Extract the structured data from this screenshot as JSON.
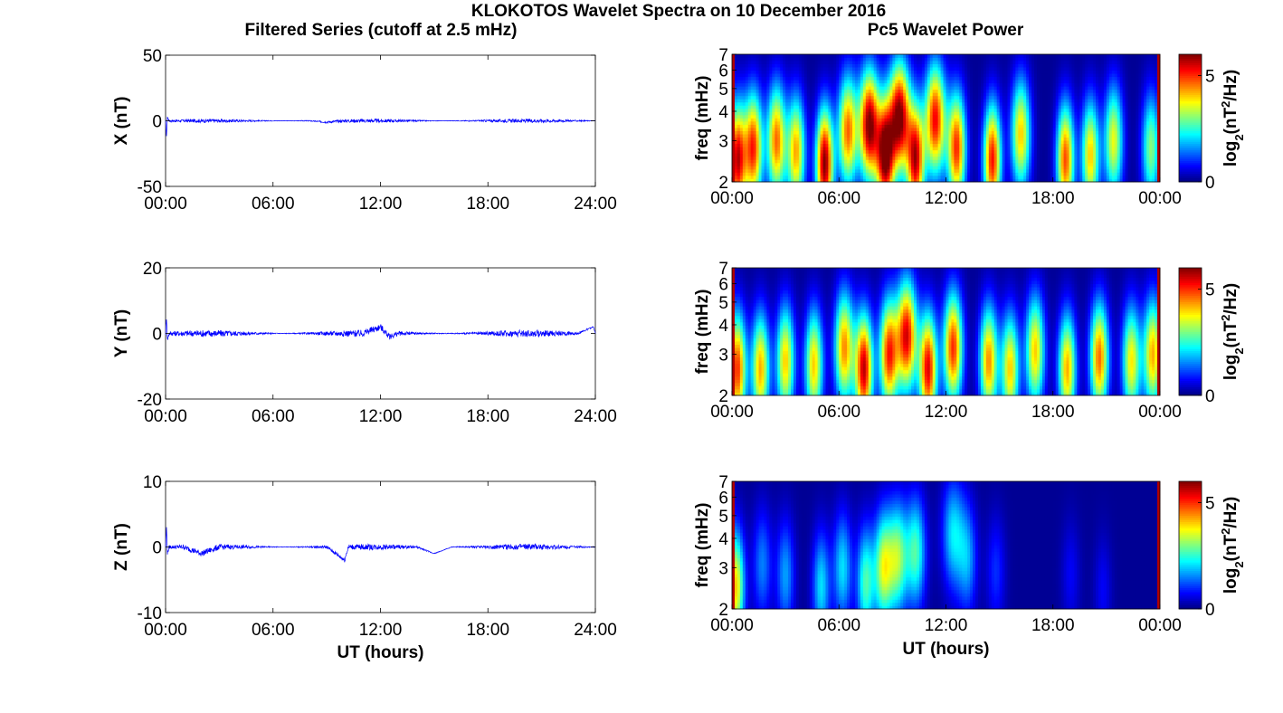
{
  "figure": {
    "title": "KLOKOTOS Wavelet Spectra on 10 December 2016",
    "left_title": "Filtered Series (cutoff at 2.5 mHz)",
    "right_title": "Pc5 Wavelet Power"
  },
  "chart_data": [
    {
      "type": "line",
      "title": "",
      "xlabel": "",
      "ylabel": "X (nT)",
      "xlim": [
        0,
        24
      ],
      "ylim": [
        -50,
        50
      ],
      "xticks": [
        "00:00",
        "06:00",
        "12:00",
        "18:00",
        "24:00"
      ],
      "yticks": [
        "50",
        "0",
        "-50"
      ],
      "ytick_values": [
        50,
        0,
        -50
      ],
      "grid": false,
      "series": [
        {
          "color": "#0000ff",
          "x": [
            0,
            0.05,
            0.1,
            0.2,
            1,
            2,
            3,
            4,
            5,
            6,
            7,
            8,
            9,
            10,
            11,
            12,
            13,
            14,
            15,
            16,
            17,
            18,
            19,
            20,
            21,
            22,
            23,
            23.9,
            24
          ],
          "y": [
            0,
            -12,
            3,
            0,
            0,
            0,
            0,
            0,
            0,
            0,
            0,
            0,
            -1,
            0,
            0,
            0,
            0,
            0,
            0,
            0,
            0,
            0,
            0,
            0,
            0,
            0,
            0,
            0,
            0
          ],
          "noise_amplitude": 0.8
        }
      ]
    },
    {
      "type": "line",
      "title": "",
      "xlabel": "",
      "ylabel": "Y (nT)",
      "xlim": [
        0,
        24
      ],
      "ylim": [
        -20,
        20
      ],
      "xticks": [
        "00:00",
        "06:00",
        "12:00",
        "18:00",
        "24:00"
      ],
      "yticks": [
        "20",
        "0",
        "-20"
      ],
      "ytick_values": [
        20,
        0,
        -20
      ],
      "grid": false,
      "series": [
        {
          "color": "#0000ff",
          "x": [
            0,
            0.05,
            0.1,
            0.2,
            1,
            2,
            3,
            4,
            5,
            6,
            7,
            8,
            9,
            10,
            11,
            12,
            12.5,
            13,
            14,
            15,
            16,
            17,
            18,
            19,
            20,
            21,
            22,
            23,
            23.9,
            24
          ],
          "y": [
            0,
            5,
            -2,
            0,
            0,
            0,
            0,
            0,
            0,
            0,
            0,
            0,
            0,
            0,
            0,
            2,
            -1,
            0,
            0,
            0,
            0,
            0,
            0,
            0,
            0,
            0,
            0,
            0,
            2,
            0
          ],
          "noise_amplitude": 0.6
        }
      ]
    },
    {
      "type": "line",
      "title": "",
      "xlabel": "UT (hours)",
      "ylabel": "Z (nT)",
      "xlim": [
        0,
        24
      ],
      "ylim": [
        -10,
        10
      ],
      "xticks": [
        "00:00",
        "06:00",
        "12:00",
        "18:00",
        "24:00"
      ],
      "yticks": [
        "10",
        "0",
        "-10"
      ],
      "ytick_values": [
        10,
        0,
        -10
      ],
      "grid": false,
      "series": [
        {
          "color": "#0000ff",
          "x": [
            0,
            0.05,
            0.1,
            0.2,
            1,
            2,
            3,
            4,
            5,
            6,
            7,
            8,
            9,
            10,
            10.2,
            11,
            12,
            13,
            14,
            15,
            16,
            17,
            18,
            19,
            20,
            21,
            22,
            23,
            24
          ],
          "y": [
            0,
            3,
            -1,
            0,
            0,
            -1,
            0,
            0,
            0,
            0,
            0,
            0,
            0,
            -2,
            0,
            0,
            0,
            0,
            0,
            -1,
            0,
            0,
            0,
            0,
            0,
            0,
            0,
            0,
            0
          ],
          "noise_amplitude": 0.25
        }
      ]
    },
    {
      "type": "heatmap",
      "title": "",
      "xlabel": "",
      "ylabel": "freq (mHz)",
      "xlim": [
        0,
        24
      ],
      "ylim": [
        2,
        7
      ],
      "yscale": "log",
      "xticks": [
        "00:00",
        "06:00",
        "12:00",
        "18:00",
        "00:00"
      ],
      "xtick_values": [
        0,
        6,
        12,
        18,
        24
      ],
      "yticks": [
        "2",
        "3",
        "4",
        "5",
        "6",
        "7"
      ],
      "ytick_values": [
        2,
        3,
        4,
        5,
        6,
        7
      ],
      "colorbar": {
        "label": "log2(nT2/Hz)",
        "range": [
          0,
          6
        ],
        "ticks": [
          "0",
          "5"
        ],
        "tick_values": [
          0,
          5
        ]
      },
      "colormap": "jet",
      "blobs": [
        {
          "t": 0.3,
          "f": 2.5,
          "p": 5.5
        },
        {
          "t": 1.2,
          "f": 2.8,
          "p": 5.0
        },
        {
          "t": 2.5,
          "f": 3.0,
          "p": 4.6
        },
        {
          "t": 3.6,
          "f": 2.7,
          "p": 4.2
        },
        {
          "t": 5.2,
          "f": 2.4,
          "p": 6.0
        },
        {
          "t": 6.5,
          "f": 3.3,
          "p": 4.6
        },
        {
          "t": 7.7,
          "f": 3.5,
          "p": 6.0
        },
        {
          "t": 8.6,
          "f": 2.6,
          "p": 6.0
        },
        {
          "t": 9.4,
          "f": 3.8,
          "p": 6.0
        },
        {
          "t": 10.3,
          "f": 2.5,
          "p": 5.5
        },
        {
          "t": 11.4,
          "f": 3.7,
          "p": 5.3
        },
        {
          "t": 12.6,
          "f": 2.8,
          "p": 5.0
        },
        {
          "t": 14.6,
          "f": 2.5,
          "p": 5.2
        },
        {
          "t": 16.2,
          "f": 3.2,
          "p": 4.0
        },
        {
          "t": 18.7,
          "f": 2.5,
          "p": 4.8
        },
        {
          "t": 20.1,
          "f": 2.6,
          "p": 4.0
        },
        {
          "t": 21.4,
          "f": 3.0,
          "p": 3.6
        },
        {
          "t": 23.5,
          "f": 2.8,
          "p": 3.0
        }
      ]
    },
    {
      "type": "heatmap",
      "title": "",
      "xlabel": "",
      "ylabel": "freq (mHz)",
      "xlim": [
        0,
        24
      ],
      "ylim": [
        2,
        7
      ],
      "yscale": "log",
      "xticks": [
        "00:00",
        "06:00",
        "12:00",
        "18:00",
        "00:00"
      ],
      "xtick_values": [
        0,
        6,
        12,
        18,
        24
      ],
      "yticks": [
        "2",
        "3",
        "4",
        "5",
        "6",
        "7"
      ],
      "ytick_values": [
        2,
        3,
        4,
        5,
        6,
        7
      ],
      "colorbar": {
        "label": "log2(nT2/Hz)",
        "range": [
          0,
          6
        ],
        "ticks": [
          "0",
          "5"
        ],
        "tick_values": [
          0,
          5
        ]
      },
      "colormap": "jet",
      "blobs": [
        {
          "t": 0.3,
          "f": 2.6,
          "p": 5.0
        },
        {
          "t": 1.6,
          "f": 2.6,
          "p": 4.2
        },
        {
          "t": 3.0,
          "f": 2.8,
          "p": 4.0
        },
        {
          "t": 4.6,
          "f": 2.7,
          "p": 4.0
        },
        {
          "t": 6.3,
          "f": 3.2,
          "p": 4.4
        },
        {
          "t": 7.4,
          "f": 2.6,
          "p": 5.6
        },
        {
          "t": 8.8,
          "f": 3.0,
          "p": 5.0
        },
        {
          "t": 9.8,
          "f": 3.6,
          "p": 5.4
        },
        {
          "t": 11.0,
          "f": 2.6,
          "p": 5.4
        },
        {
          "t": 12.4,
          "f": 3.2,
          "p": 5.0
        },
        {
          "t": 14.4,
          "f": 2.8,
          "p": 4.4
        },
        {
          "t": 15.6,
          "f": 2.6,
          "p": 4.0
        },
        {
          "t": 17.0,
          "f": 3.1,
          "p": 4.0
        },
        {
          "t": 18.8,
          "f": 2.6,
          "p": 4.2
        },
        {
          "t": 20.6,
          "f": 2.9,
          "p": 4.6
        },
        {
          "t": 22.4,
          "f": 2.8,
          "p": 3.8
        },
        {
          "t": 23.6,
          "f": 3.0,
          "p": 4.2
        }
      ]
    },
    {
      "type": "heatmap",
      "title": "",
      "xlabel": "UT (hours)",
      "ylabel": "freq (mHz)",
      "xlim": [
        0,
        24
      ],
      "ylim": [
        2,
        7
      ],
      "yscale": "log",
      "xticks": [
        "00:00",
        "06:00",
        "12:00",
        "18:00",
        "00:00"
      ],
      "xtick_values": [
        0,
        6,
        12,
        18,
        24
      ],
      "yticks": [
        "2",
        "3",
        "4",
        "5",
        "6",
        "7"
      ],
      "ytick_values": [
        2,
        3,
        4,
        5,
        6,
        7
      ],
      "colorbar": {
        "label": "log2(nT2/Hz)",
        "range": [
          0,
          6
        ],
        "ticks": [
          "0",
          "5"
        ],
        "tick_values": [
          0,
          5
        ]
      },
      "colormap": "jet",
      "blobs": [
        {
          "t": 0.2,
          "f": 2.5,
          "p": 4.0
        },
        {
          "t": 1.7,
          "f": 3.1,
          "p": 1.4
        },
        {
          "t": 3.0,
          "f": 2.8,
          "p": 1.6
        },
        {
          "t": 5.0,
          "f": 2.5,
          "p": 2.0
        },
        {
          "t": 6.2,
          "f": 3.0,
          "p": 2.0
        },
        {
          "t": 7.5,
          "f": 2.6,
          "p": 2.6
        },
        {
          "t": 8.5,
          "f": 3.0,
          "p": 3.4
        },
        {
          "t": 9.3,
          "f": 3.3,
          "p": 3.0
        },
        {
          "t": 10.3,
          "f": 3.5,
          "p": 2.6
        },
        {
          "t": 12.4,
          "f": 4.2,
          "p": 2.0
        },
        {
          "t": 13.2,
          "f": 3.3,
          "p": 1.6
        },
        {
          "t": 14.8,
          "f": 2.9,
          "p": 0.9
        },
        {
          "t": 19.0,
          "f": 2.8,
          "p": 0.6
        },
        {
          "t": 20.8,
          "f": 2.4,
          "p": 0.6
        }
      ]
    }
  ]
}
